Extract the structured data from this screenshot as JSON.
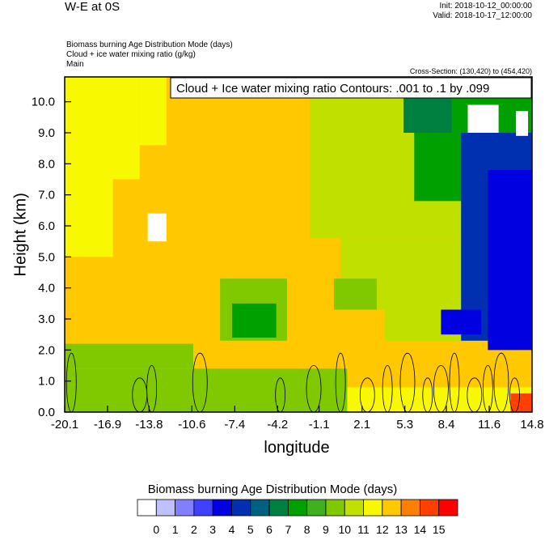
{
  "header": {
    "title": "W-E at 0S",
    "init": "Init: 2018-10-12_00:00:00",
    "valid": "Valid: 2018-10-17_12:00:00",
    "subtitles": [
      "Biomass burning Age Distribution Mode    (days)",
      "Cloud + ice water mixing ratio    (g/kg)",
      "Main"
    ],
    "cross_section": "Cross-Section: (130,420) to (454,420)"
  },
  "chart_data": {
    "type": "heatmap",
    "title": "W-E at 0S",
    "xlabel": "longitude",
    "ylabel": "Height (km)",
    "xlim": [
      -20.1,
      14.8
    ],
    "ylim": [
      0.0,
      10.8
    ],
    "x_ticks": [
      "-20.1",
      "-16.9",
      "-13.8",
      "-10.6",
      "-7.4",
      "-4.2",
      "-1.1",
      "2.1",
      "5.3",
      "8.4",
      "11.6",
      "14.8"
    ],
    "y_ticks": [
      "0.0",
      "1.0",
      "2.0",
      "3.0",
      "4.0",
      "5.0",
      "6.0",
      "7.0",
      "8.0",
      "9.0",
      "10.0"
    ],
    "contour_annotation": "Cloud + Ice water mixing ratio Contours: .001 to .1 by .099",
    "colorbar": {
      "title": "Biomass burning Age Distribution Mode  (days)",
      "labels": [
        "0",
        "1",
        "2",
        "3",
        "4",
        "5",
        "6",
        "7",
        "8",
        "9",
        "10",
        "11",
        "12",
        "13",
        "14",
        "15"
      ],
      "colors": [
        "#ffffff",
        "#c0c0ff",
        "#8080ff",
        "#4040ff",
        "#0000e0",
        "#0030b0",
        "#006080",
        "#008040",
        "#00a000",
        "#40b020",
        "#80c800",
        "#c0e000",
        "#f8f800",
        "#ffc800",
        "#ff8000",
        "#ff4000",
        "#ff0000"
      ]
    },
    "regions": [
      {
        "days": 13,
        "x": [
          -20.1,
          14.8
        ],
        "y": [
          0.0,
          10.8
        ]
      },
      {
        "days": 12,
        "x": [
          -20.1,
          -14.5
        ],
        "y": [
          7.5,
          10.8
        ]
      },
      {
        "days": 12,
        "x": [
          -20.1,
          -16.5
        ],
        "y": [
          5.0,
          7.5
        ]
      },
      {
        "days": 12,
        "x": [
          -14.5,
          -12.5
        ],
        "y": [
          8.6,
          10.8
        ]
      },
      {
        "days": 11,
        "x": [
          -1.8,
          14.8
        ],
        "y": [
          5.6,
          10.8
        ]
      },
      {
        "days": 11,
        "x": [
          0.5,
          14.8
        ],
        "y": [
          3.3,
          5.6
        ]
      },
      {
        "days": 11,
        "x": [
          3.8,
          14.8
        ],
        "y": [
          2.3,
          3.3
        ]
      },
      {
        "days": 8,
        "x": [
          6.0,
          14.8
        ],
        "y": [
          6.8,
          10.8
        ]
      },
      {
        "days": 7,
        "x": [
          5.2,
          8.8
        ],
        "y": [
          9.0,
          10.8
        ]
      },
      {
        "days": 5,
        "x": [
          9.5,
          14.8
        ],
        "y": [
          2.3,
          9.0
        ]
      },
      {
        "days": 4,
        "x": [
          11.5,
          14.8
        ],
        "y": [
          2.0,
          7.8
        ]
      },
      {
        "days": 4,
        "x": [
          8.0,
          11.0
        ],
        "y": [
          2.5,
          3.3
        ]
      },
      {
        "days": 0,
        "x": [
          -13.9,
          -12.5
        ],
        "y": [
          5.5,
          6.4
        ]
      },
      {
        "days": 0,
        "x": [
          10.0,
          12.3
        ],
        "y": [
          9.0,
          9.9
        ]
      },
      {
        "days": 0,
        "x": [
          13.6,
          14.5
        ],
        "y": [
          8.9,
          9.7
        ]
      },
      {
        "days": 10,
        "x": [
          -20.1,
          1.0
        ],
        "y": [
          0.0,
          1.4
        ]
      },
      {
        "days": 10,
        "x": [
          -20.1,
          -10.5
        ],
        "y": [
          1.4,
          2.2
        ]
      },
      {
        "days": 10,
        "x": [
          -8.5,
          -3.5
        ],
        "y": [
          2.3,
          4.3
        ]
      },
      {
        "days": 10,
        "x": [
          0.0,
          3.2
        ],
        "y": [
          3.3,
          4.3
        ]
      },
      {
        "days": 8,
        "x": [
          -7.6,
          -4.3
        ],
        "y": [
          2.4,
          3.5
        ]
      },
      {
        "days": 12,
        "x": [
          1.0,
          14.8
        ],
        "y": [
          0.0,
          0.8
        ]
      },
      {
        "days": 15,
        "x": [
          13.2,
          14.8
        ],
        "y": [
          0.0,
          0.6
        ]
      }
    ]
  }
}
